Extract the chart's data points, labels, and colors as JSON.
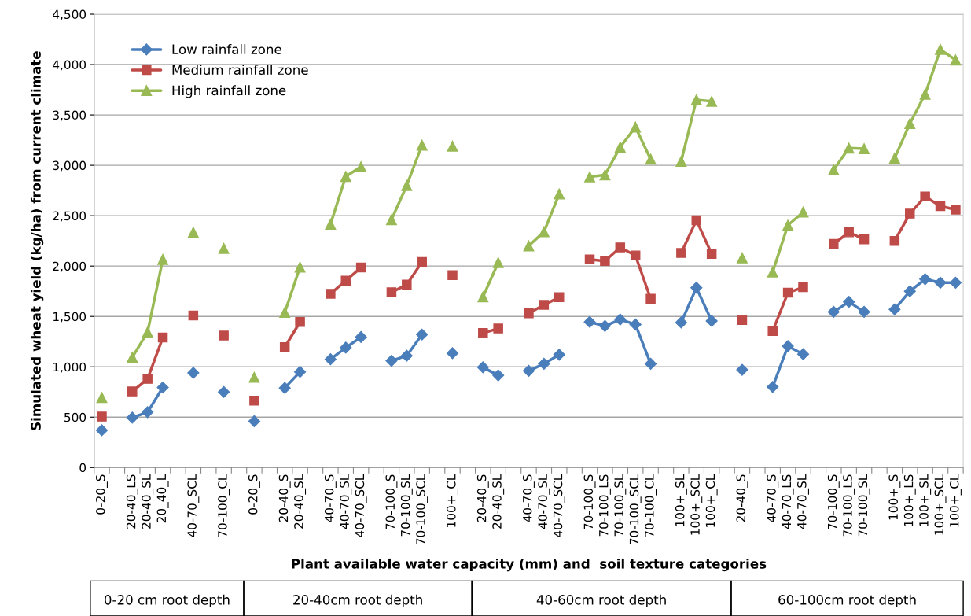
{
  "chart_data": {
    "type": "line",
    "xlabel": "Plant available water capacity (mm) and  soil texture categories",
    "ylabel": "Simulated wheat yield (kg/ha) from current climate",
    "categories": [
      "0-20_S",
      null,
      "20-40_LS",
      "20-40_SL",
      "20_40_L",
      null,
      "40-70_SCL",
      null,
      "70-100_CL",
      null,
      "0-20_S",
      null,
      "20-40_S",
      "20-40_SL",
      null,
      "40-70_S",
      "40-70_SL",
      "40-70_SCL",
      null,
      "70-100_S",
      "70-100_SL",
      "70-100_SCL",
      null,
      "100+_CL",
      null,
      "20-40_S",
      "20-40_SL",
      null,
      "40-70_S",
      "40-70_SL",
      "40-70_SCL",
      null,
      "70-100_S",
      "70-100_LS",
      "70-100_SL",
      "70-100_SCL",
      "70-100_CL",
      null,
      "100+_SL",
      "100+_SCL",
      "100+_CL",
      null,
      "20-40_S",
      null,
      "40-70_S",
      "40-70_LS",
      "40-70_SL",
      null,
      "70-100_S",
      "70-100_LS",
      "70-100_SL",
      null,
      "100+_S",
      "100+_LS",
      "100+_SL",
      "100+_SCL",
      "100+_CL"
    ],
    "series": [
      {
        "name": "Low rainfall zone",
        "color": "#4a7ebb",
        "marker": "diamond",
        "values": [
          370,
          null,
          495,
          550,
          795,
          null,
          940,
          null,
          750,
          null,
          460,
          null,
          790,
          950,
          null,
          1075,
          1190,
          1295,
          null,
          1060,
          1110,
          1320,
          null,
          1135,
          null,
          995,
          915,
          null,
          960,
          1030,
          1120,
          null,
          1445,
          1405,
          1470,
          1420,
          1030,
          null,
          1440,
          1785,
          1455,
          null,
          970,
          null,
          800,
          1205,
          1125,
          null,
          1545,
          1645,
          1545,
          null,
          1570,
          1750,
          1870,
          1835,
          1835
        ]
      },
      {
        "name": "Medium rainfall zone",
        "color": "#be4b48",
        "marker": "square",
        "values": [
          505,
          null,
          755,
          880,
          1290,
          null,
          1510,
          null,
          1310,
          null,
          665,
          null,
          1195,
          1445,
          null,
          1725,
          1855,
          1985,
          null,
          1740,
          1815,
          2040,
          null,
          1910,
          null,
          1335,
          1380,
          null,
          1530,
          1615,
          1690,
          null,
          2065,
          2050,
          2185,
          2105,
          1675,
          null,
          2130,
          2455,
          2120,
          null,
          1465,
          null,
          1355,
          1735,
          1790,
          null,
          2220,
          2335,
          2265,
          null,
          2250,
          2520,
          2690,
          2595,
          2560
        ]
      },
      {
        "name": "High rainfall zone",
        "color": "#98b954",
        "marker": "triangle",
        "values": [
          695,
          null,
          1095,
          1345,
          2065,
          null,
          2335,
          null,
          2175,
          null,
          895,
          null,
          1540,
          1990,
          null,
          2415,
          2890,
          2985,
          null,
          2460,
          2800,
          3200,
          null,
          3190,
          null,
          1695,
          2035,
          null,
          2200,
          2340,
          2715,
          null,
          2885,
          2905,
          3180,
          3380,
          3060,
          null,
          3040,
          3650,
          3635,
          null,
          2080,
          null,
          1940,
          2405,
          2535,
          null,
          2955,
          3170,
          3165,
          null,
          3070,
          3415,
          3705,
          4150,
          4045
        ]
      }
    ],
    "ylim": [
      0,
      4500
    ],
    "yticks": [
      {
        "value": 0,
        "label": "0"
      },
      {
        "value": 500,
        "label": "500"
      },
      {
        "value": 1000,
        "label": "1,000"
      },
      {
        "value": 1500,
        "label": "1,500"
      },
      {
        "value": 2000,
        "label": "2,000"
      },
      {
        "value": 2500,
        "label": "2,500"
      },
      {
        "value": 3000,
        "label": "3,000"
      },
      {
        "value": 3500,
        "label": "3,500"
      },
      {
        "value": 4000,
        "label": "4,000"
      },
      {
        "value": 4500,
        "label": "4,500"
      }
    ],
    "grid": "y",
    "legend": "top left",
    "line_style": "solid",
    "annotations": [
      "0-20 cm root depth",
      "20-40cm root depth",
      "40-60cm root depth",
      "60-100cm root depth"
    ]
  }
}
